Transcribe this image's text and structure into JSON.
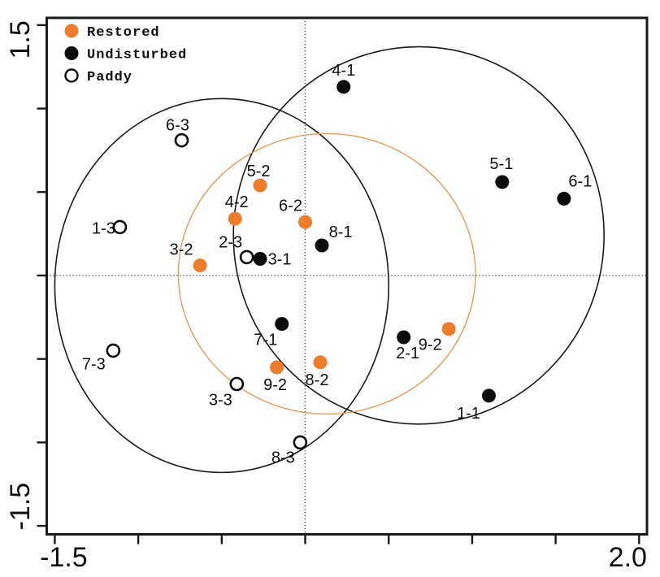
{
  "chart_data": {
    "type": "scatter",
    "title": "",
    "xlabel": "",
    "ylabel": "",
    "xlim": [
      -1.55,
      2.05
    ],
    "ylim": [
      -1.55,
      1.55
    ],
    "grid": false,
    "x_ticks": [
      -1.5,
      -1.0,
      -0.5,
      0,
      0.5,
      1.0,
      1.5,
      2.0
    ],
    "y_ticks": [
      -1.5,
      -1.0,
      -0.5,
      0,
      0.5,
      1.0,
      1.5
    ],
    "x_end_labels": [
      {
        "value": -1.5,
        "text": "-1.5"
      },
      {
        "value": 2.0,
        "text": "2.0"
      }
    ],
    "y_end_labels": [
      {
        "value": 1.5,
        "text": "1.5"
      },
      {
        "value": -1.5,
        "text": "-1.5"
      }
    ],
    "crosshair_origin": {
      "x": 0.0,
      "y": 0.0
    },
    "crosshair_color": "#3A3A3A",
    "frame_color": "#1A1A1A",
    "label_color": "#101010",
    "legend_position": "top-left-inside",
    "legend": [
      {
        "label": "Restored",
        "series": "restored"
      },
      {
        "label": "Undisturbed",
        "series": "undisturbed"
      },
      {
        "label": "Paddy",
        "series": "paddy"
      }
    ],
    "series": [
      {
        "name": "restored",
        "marker": "filled",
        "color": "#ED7D2B",
        "points": [
          {
            "label": "3-2",
            "x": -0.63,
            "y": 0.06,
            "label_dx": -23,
            "label_dy": -20
          },
          {
            "label": "4-2",
            "x": -0.42,
            "y": 0.34,
            "label_dx": 2,
            "label_dy": -21
          },
          {
            "label": "5-2",
            "x": -0.27,
            "y": 0.54,
            "label_dx": -2,
            "label_dy": -18
          },
          {
            "label": "6-2",
            "x": 0.0,
            "y": 0.32,
            "label_dx": -18,
            "label_dy": -21
          },
          {
            "label": "8-2",
            "x": 0.09,
            "y": -0.52,
            "label_dx": -4,
            "label_dy": 21
          },
          {
            "label": "9-2",
            "x": -0.17,
            "y": -0.55,
            "label_dx": -2,
            "label_dy": 21
          },
          {
            "label": "9-2",
            "x": 0.86,
            "y": -0.32,
            "label_dx": -23,
            "label_dy": 19
          }
        ]
      },
      {
        "name": "undisturbed",
        "marker": "filled",
        "color": "#0B0B0B",
        "points": [
          {
            "label": "1-1",
            "x": 1.1,
            "y": -0.72,
            "label_dx": -25,
            "label_dy": 21
          },
          {
            "label": "2-1",
            "x": 0.59,
            "y": -0.37,
            "label_dx": 5,
            "label_dy": 19
          },
          {
            "label": "3-1",
            "x": -0.27,
            "y": 0.1,
            "label_dx": 24,
            "label_dy": 0
          },
          {
            "label": "4-1",
            "x": 0.23,
            "y": 1.13,
            "label_dx": 0,
            "label_dy": -21
          },
          {
            "label": "5-1",
            "x": 1.18,
            "y": 0.56,
            "label_dx": -1,
            "label_dy": -23
          },
          {
            "label": "6-1",
            "x": 1.55,
            "y": 0.46,
            "label_dx": 20,
            "label_dy": -22
          },
          {
            "label": "7-1",
            "x": -0.14,
            "y": -0.29,
            "label_dx": -20,
            "label_dy": 19
          },
          {
            "label": "8-1",
            "x": 0.1,
            "y": 0.18,
            "label_dx": 23,
            "label_dy": -17
          }
        ]
      },
      {
        "name": "paddy",
        "marker": "open",
        "color": "#FFFFFF",
        "stroke": "#0B0B0B",
        "points": [
          {
            "label": "1-3",
            "x": -1.11,
            "y": 0.29,
            "label_dx": -20,
            "label_dy": 1
          },
          {
            "label": "2-3",
            "x": -0.35,
            "y": 0.11,
            "label_dx": -20,
            "label_dy": -19
          },
          {
            "label": "3-3",
            "x": -0.41,
            "y": -0.65,
            "label_dx": -20,
            "label_dy": 19
          },
          {
            "label": "6-3",
            "x": -0.74,
            "y": 0.81,
            "label_dx": -5,
            "label_dy": -19
          },
          {
            "label": "7-3",
            "x": -1.15,
            "y": -0.45,
            "label_dx": -24,
            "label_dy": 16
          },
          {
            "label": "8-3",
            "x": -0.03,
            "y": -1.0,
            "label_dx": -21,
            "label_dy": 18
          }
        ]
      }
    ],
    "ellipses": [
      {
        "name": "paddy-ellipse",
        "cx": -0.5,
        "cy": -0.06,
        "rx": 1.0,
        "ry": 1.12,
        "color": "#1A1A1A",
        "width": 1.6
      },
      {
        "name": "undisturbed-ellipse",
        "cx": 0.68,
        "cy": 0.24,
        "rx": 1.11,
        "ry": 1.13,
        "color": "#1A1A1A",
        "width": 1.6
      },
      {
        "name": "restored-ellipse",
        "cx": 0.13,
        "cy": 0.01,
        "rx": 0.89,
        "ry": 0.84,
        "color": "#E89A55",
        "width": 1.4
      }
    ]
  }
}
